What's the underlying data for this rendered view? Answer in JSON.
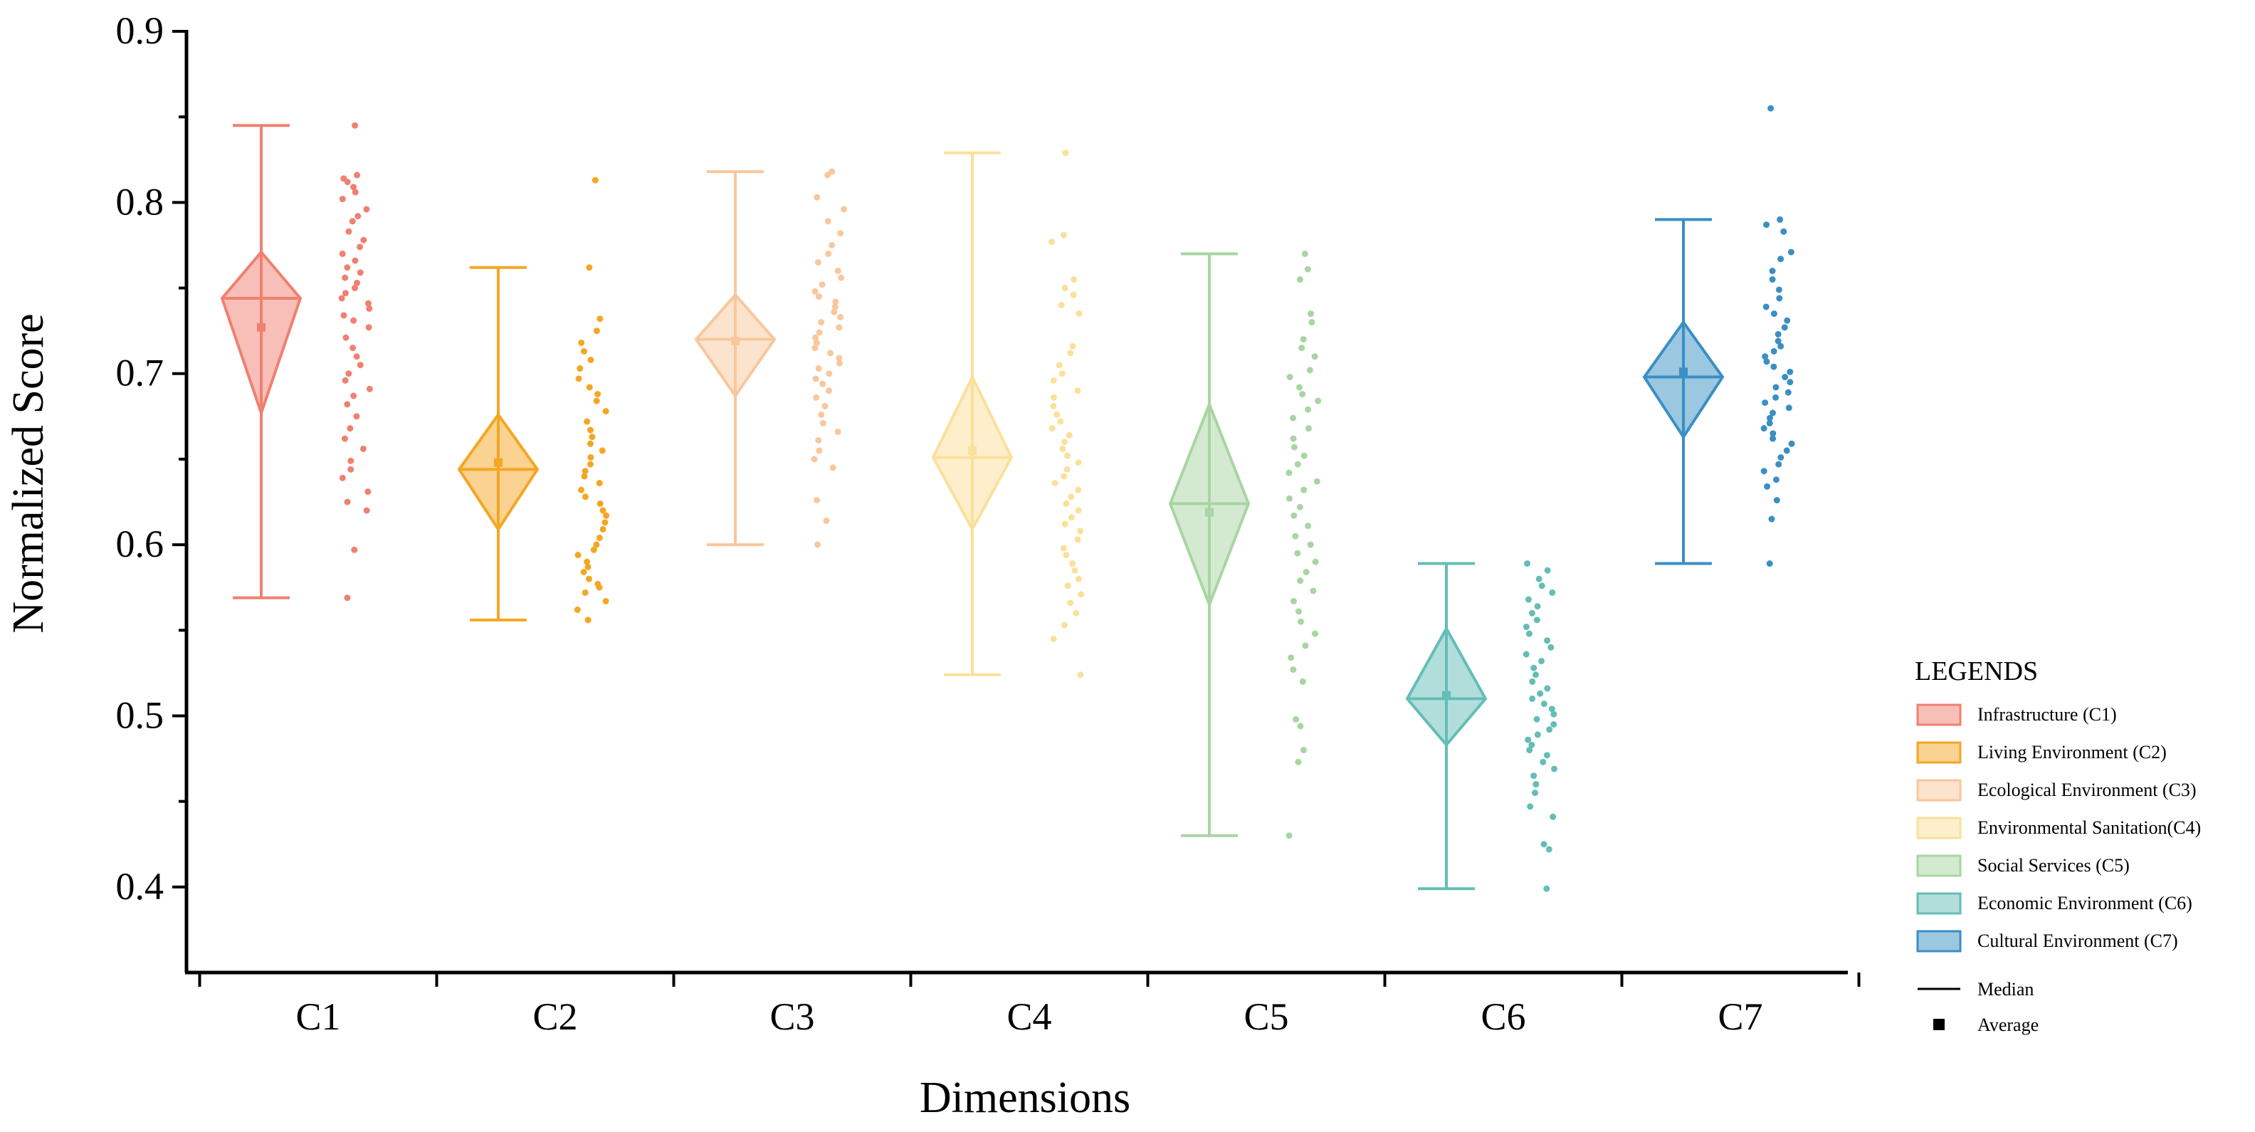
{
  "chart_data": {
    "type": "violin-box-scatter",
    "title": "",
    "xlabel": "Dimensions",
    "ylabel": "Normalized Score",
    "ylim": [
      0.35,
      0.9
    ],
    "yticks": [
      "0.4",
      "0.5",
      "0.6",
      "0.7",
      "0.8",
      "0.9"
    ],
    "categories": [
      "C1",
      "C2",
      "C3",
      "C4",
      "C5",
      "C6",
      "C7"
    ],
    "series": [
      {
        "name": "Infrastructure (C1)",
        "color": "#F08070",
        "min": 0.569,
        "max": 0.845,
        "median": 0.744,
        "mean": 0.727,
        "diamond": [
          0.677,
          0.771
        ],
        "points": [
          0.845,
          0.816,
          0.814,
          0.812,
          0.809,
          0.806,
          0.802,
          0.796,
          0.792,
          0.789,
          0.783,
          0.778,
          0.774,
          0.77,
          0.766,
          0.762,
          0.759,
          0.756,
          0.753,
          0.75,
          0.747,
          0.744,
          0.741,
          0.738,
          0.734,
          0.731,
          0.727,
          0.721,
          0.715,
          0.71,
          0.705,
          0.7,
          0.696,
          0.691,
          0.687,
          0.682,
          0.675,
          0.668,
          0.662,
          0.656,
          0.649,
          0.644,
          0.639,
          0.631,
          0.625,
          0.62,
          0.597,
          0.569
        ]
      },
      {
        "name": "Living Environment (C2)",
        "color": "#F5A623",
        "min": 0.556,
        "max": 0.762,
        "median": 0.644,
        "mean": 0.648,
        "diamond": [
          0.609,
          0.676
        ],
        "points": [
          0.813,
          0.762,
          0.732,
          0.725,
          0.718,
          0.713,
          0.708,
          0.703,
          0.697,
          0.692,
          0.688,
          0.684,
          0.678,
          0.672,
          0.667,
          0.663,
          0.659,
          0.655,
          0.651,
          0.647,
          0.643,
          0.64,
          0.636,
          0.632,
          0.628,
          0.624,
          0.62,
          0.617,
          0.613,
          0.609,
          0.604,
          0.6,
          0.597,
          0.594,
          0.59,
          0.587,
          0.584,
          0.58,
          0.577,
          0.575,
          0.572,
          0.567,
          0.562,
          0.556
        ]
      },
      {
        "name": "Ecological Environment (C3)",
        "color": "#F9C79C",
        "min": 0.6,
        "max": 0.818,
        "median": 0.72,
        "mean": 0.719,
        "diamond": [
          0.687,
          0.746
        ],
        "points": [
          0.818,
          0.816,
          0.803,
          0.796,
          0.789,
          0.782,
          0.775,
          0.77,
          0.765,
          0.76,
          0.756,
          0.752,
          0.748,
          0.745,
          0.742,
          0.739,
          0.736,
          0.733,
          0.73,
          0.727,
          0.724,
          0.721,
          0.718,
          0.715,
          0.712,
          0.709,
          0.706,
          0.703,
          0.7,
          0.697,
          0.694,
          0.69,
          0.686,
          0.681,
          0.676,
          0.671,
          0.666,
          0.661,
          0.655,
          0.65,
          0.645,
          0.626,
          0.614,
          0.6
        ]
      },
      {
        "name": "Environmental Sanitation(C4)",
        "color": "#FBE09A",
        "min": 0.524,
        "max": 0.829,
        "median": 0.651,
        "mean": 0.655,
        "diamond": [
          0.609,
          0.698
        ],
        "points": [
          0.829,
          0.781,
          0.777,
          0.755,
          0.75,
          0.746,
          0.74,
          0.735,
          0.716,
          0.712,
          0.705,
          0.7,
          0.696,
          0.69,
          0.686,
          0.681,
          0.676,
          0.672,
          0.668,
          0.664,
          0.66,
          0.656,
          0.652,
          0.648,
          0.644,
          0.64,
          0.636,
          0.632,
          0.628,
          0.624,
          0.62,
          0.616,
          0.612,
          0.608,
          0.603,
          0.598,
          0.594,
          0.589,
          0.585,
          0.58,
          0.576,
          0.571,
          0.566,
          0.56,
          0.553,
          0.545,
          0.524
        ]
      },
      {
        "name": "Social Services (C5)",
        "color": "#A8D5A2",
        "min": 0.43,
        "max": 0.77,
        "median": 0.624,
        "mean": 0.619,
        "diamond": [
          0.565,
          0.682
        ],
        "points": [
          0.77,
          0.761,
          0.755,
          0.735,
          0.73,
          0.72,
          0.715,
          0.71,
          0.702,
          0.698,
          0.692,
          0.688,
          0.684,
          0.679,
          0.674,
          0.668,
          0.662,
          0.657,
          0.652,
          0.647,
          0.642,
          0.637,
          0.632,
          0.627,
          0.622,
          0.617,
          0.611,
          0.605,
          0.6,
          0.595,
          0.59,
          0.584,
          0.579,
          0.573,
          0.567,
          0.561,
          0.555,
          0.548,
          0.541,
          0.534,
          0.527,
          0.52,
          0.498,
          0.494,
          0.48,
          0.473,
          0.43
        ]
      },
      {
        "name": "Economic Environment (C6)",
        "color": "#64BDB7",
        "min": 0.399,
        "max": 0.589,
        "median": 0.51,
        "mean": 0.512,
        "diamond": [
          0.483,
          0.551
        ],
        "points": [
          0.589,
          0.585,
          0.58,
          0.576,
          0.572,
          0.568,
          0.564,
          0.56,
          0.556,
          0.552,
          0.548,
          0.544,
          0.54,
          0.536,
          0.532,
          0.528,
          0.524,
          0.52,
          0.516,
          0.513,
          0.51,
          0.507,
          0.504,
          0.501,
          0.498,
          0.495,
          0.492,
          0.489,
          0.486,
          0.483,
          0.48,
          0.477,
          0.473,
          0.469,
          0.465,
          0.46,
          0.455,
          0.447,
          0.441,
          0.425,
          0.422,
          0.399
        ]
      },
      {
        "name": "Cultural Environment (C7)",
        "color": "#3A8FC4",
        "min": 0.589,
        "max": 0.79,
        "median": 0.698,
        "mean": 0.701,
        "diamond": [
          0.663,
          0.73
        ],
        "points": [
          0.855,
          0.79,
          0.787,
          0.783,
          0.771,
          0.767,
          0.76,
          0.755,
          0.749,
          0.744,
          0.739,
          0.735,
          0.731,
          0.727,
          0.723,
          0.719,
          0.716,
          0.713,
          0.71,
          0.707,
          0.704,
          0.701,
          0.698,
          0.695,
          0.692,
          0.689,
          0.686,
          0.683,
          0.68,
          0.677,
          0.674,
          0.671,
          0.668,
          0.665,
          0.662,
          0.659,
          0.655,
          0.651,
          0.647,
          0.643,
          0.638,
          0.634,
          0.626,
          0.615,
          0.589
        ]
      }
    ],
    "legend": {
      "title": "LEGENDS",
      "position": "right",
      "median_label": "Median",
      "average_label": "Average"
    },
    "grid": false
  }
}
